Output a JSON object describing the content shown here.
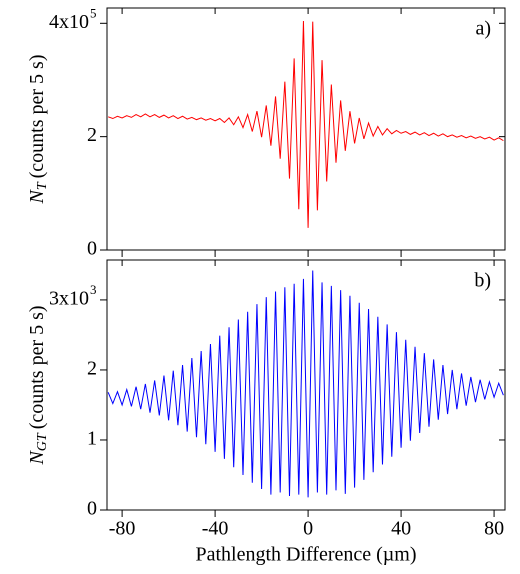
{
  "chart_data": [
    {
      "type": "line",
      "panel_label": "a)",
      "ylabel_symbol": "N",
      "ylabel_subscript": "T",
      "ylabel": "(counts per 5 s)",
      "xlim": [
        -86.5,
        84.7
      ],
      "xticks": [
        -80,
        -40,
        0,
        40,
        80
      ],
      "ylim": [
        0,
        4.27
      ],
      "yticks": [
        0,
        2,
        {
          "value": 4,
          "label": "4x10"
        }
      ],
      "y_exponent": "5",
      "x": [
        -86,
        -84,
        -82,
        -80,
        -78,
        -76,
        -74,
        -72,
        -70,
        -68,
        -66,
        -64,
        -62,
        -60,
        -58,
        -56,
        -54,
        -52,
        -50,
        -48,
        -46,
        -44,
        -42,
        -40,
        -38,
        -36,
        -34,
        -32,
        -30,
        -28,
        -26,
        -24,
        -22,
        -20,
        -18,
        -16,
        -14,
        -12,
        -10,
        -8,
        -6,
        -4,
        -2,
        0,
        2,
        4,
        6,
        8,
        10,
        12,
        14,
        16,
        18,
        20,
        22,
        24,
        26,
        28,
        30,
        32,
        34,
        36,
        38,
        40,
        42,
        44,
        46,
        48,
        50,
        52,
        54,
        56,
        58,
        60,
        62,
        64,
        66,
        68,
        70,
        72,
        74,
        76,
        78,
        80,
        82,
        84
      ],
      "series": [
        {
          "color": "#ff0000",
          "values": [
            2.35,
            2.32,
            2.36,
            2.33,
            2.37,
            2.34,
            2.39,
            2.35,
            2.4,
            2.35,
            2.39,
            2.34,
            2.38,
            2.33,
            2.37,
            2.32,
            2.36,
            2.31,
            2.34,
            2.3,
            2.33,
            2.29,
            2.32,
            2.28,
            2.32,
            2.25,
            2.33,
            2.21,
            2.35,
            2.16,
            2.39,
            2.09,
            2.45,
            1.99,
            2.55,
            1.84,
            2.71,
            1.61,
            2.97,
            1.26,
            3.38,
            0.72,
            4.04,
            0.39,
            4.03,
            0.7,
            3.35,
            1.21,
            2.92,
            1.54,
            2.64,
            1.75,
            2.45,
            1.88,
            2.33,
            1.96,
            2.24,
            2.01,
            2.18,
            2.03,
            2.14,
            2.05,
            2.11,
            2.06,
            2.09,
            2.04,
            2.08,
            2.03,
            2.07,
            2.02,
            2.06,
            2.01,
            2.05,
            2.0,
            2.03,
            1.99,
            2.02,
            1.98,
            2.01,
            1.97,
            2.0,
            1.96,
            1.99,
            1.94,
            1.98,
            1.93
          ]
        }
      ]
    },
    {
      "type": "line",
      "panel_label": "b)",
      "ylabel_symbol": "N",
      "ylabel_subscript": "GT",
      "ylabel": "(counts per 5 s)",
      "xlabel": "Pathlength Difference (µm)",
      "xlim": [
        -86.5,
        84.7
      ],
      "xticks": [
        -80,
        -40,
        0,
        40,
        80
      ],
      "ylim": [
        0,
        3.57
      ],
      "yticks": [
        0,
        1,
        2,
        {
          "value": 3,
          "label": "3x10"
        }
      ],
      "y_exponent": "3",
      "x": [
        -86,
        -84,
        -82,
        -80,
        -78,
        -76,
        -74,
        -72,
        -70,
        -68,
        -66,
        -64,
        -62,
        -60,
        -58,
        -56,
        -54,
        -52,
        -50,
        -48,
        -46,
        -44,
        -42,
        -40,
        -38,
        -36,
        -34,
        -32,
        -30,
        -28,
        -26,
        -24,
        -22,
        -20,
        -18,
        -16,
        -14,
        -12,
        -10,
        -8,
        -6,
        -4,
        -2,
        0,
        2,
        4,
        6,
        8,
        10,
        12,
        14,
        16,
        18,
        20,
        22,
        24,
        26,
        28,
        30,
        32,
        34,
        36,
        38,
        40,
        42,
        44,
        46,
        48,
        50,
        52,
        54,
        56,
        58,
        60,
        62,
        64,
        66,
        68,
        70,
        72,
        74,
        76,
        78,
        80,
        82,
        84
      ],
      "series": [
        {
          "color": "#0000ff",
          "values": [
            1.68,
            1.52,
            1.69,
            1.5,
            1.72,
            1.48,
            1.76,
            1.44,
            1.8,
            1.39,
            1.85,
            1.35,
            1.92,
            1.28,
            1.99,
            1.21,
            2.07,
            1.12,
            2.17,
            1.04,
            2.27,
            0.94,
            2.37,
            0.83,
            2.49,
            0.73,
            2.61,
            0.61,
            2.72,
            0.5,
            2.83,
            0.39,
            2.94,
            0.3,
            3.04,
            0.22,
            3.12,
            0.25,
            3.18,
            0.2,
            3.23,
            0.22,
            3.3,
            0.18,
            3.42,
            0.25,
            3.25,
            0.22,
            3.2,
            0.28,
            3.14,
            0.23,
            3.06,
            0.32,
            2.96,
            0.43,
            2.87,
            0.54,
            2.76,
            0.65,
            2.65,
            0.76,
            2.54,
            0.89,
            2.43,
            0.99,
            2.33,
            1.1,
            2.24,
            1.19,
            2.15,
            1.29,
            2.07,
            1.37,
            2.0,
            1.44,
            1.95,
            1.49,
            1.9,
            1.54,
            1.86,
            1.58,
            1.83,
            1.61,
            1.81,
            1.64
          ]
        }
      ]
    }
  ]
}
